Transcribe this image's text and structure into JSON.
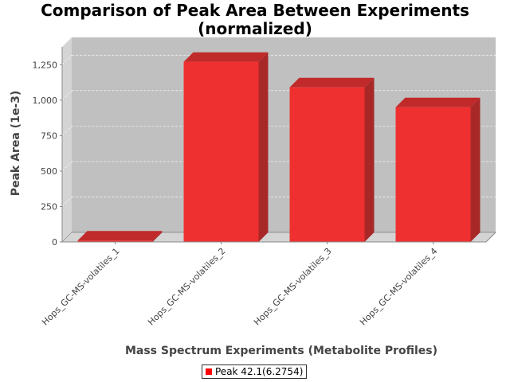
{
  "chart_data": {
    "type": "bar",
    "title_lines": [
      "Comparison of Peak Area Between Experiments",
      "(normalized)"
    ],
    "xlabel": "Mass Spectrum Experiments (Metabolite Profiles)",
    "ylabel": "Peak Area (1e-3)",
    "categories": [
      "Hops_GC-MS-volatiles_1",
      "Hops_GC-MS-volatiles_2",
      "Hops_GC-MS-volatiles_3",
      "Hops_GC-MS-volatiles_4"
    ],
    "series": [
      {
        "name": "Peak 42.1(6.2754)",
        "values": [
          10,
          1270,
          1090,
          950
        ]
      }
    ],
    "ylim": [
      0,
      1375
    ],
    "yticks": [
      0,
      250,
      500,
      750,
      1000,
      1250
    ],
    "ytick_labels": [
      "0",
      "250",
      "500",
      "750",
      "1,000",
      "1,250"
    ],
    "grid": true,
    "legend_position": "bottom",
    "style": "3d"
  },
  "colors": {
    "bar_front": "#ef3030",
    "bar_top": "#c02a2a",
    "bar_side": "#a82828",
    "plot_back": "#c0c0c0",
    "plot_floor": "#d4d4d4",
    "legend_swatch": "#ff0000"
  }
}
